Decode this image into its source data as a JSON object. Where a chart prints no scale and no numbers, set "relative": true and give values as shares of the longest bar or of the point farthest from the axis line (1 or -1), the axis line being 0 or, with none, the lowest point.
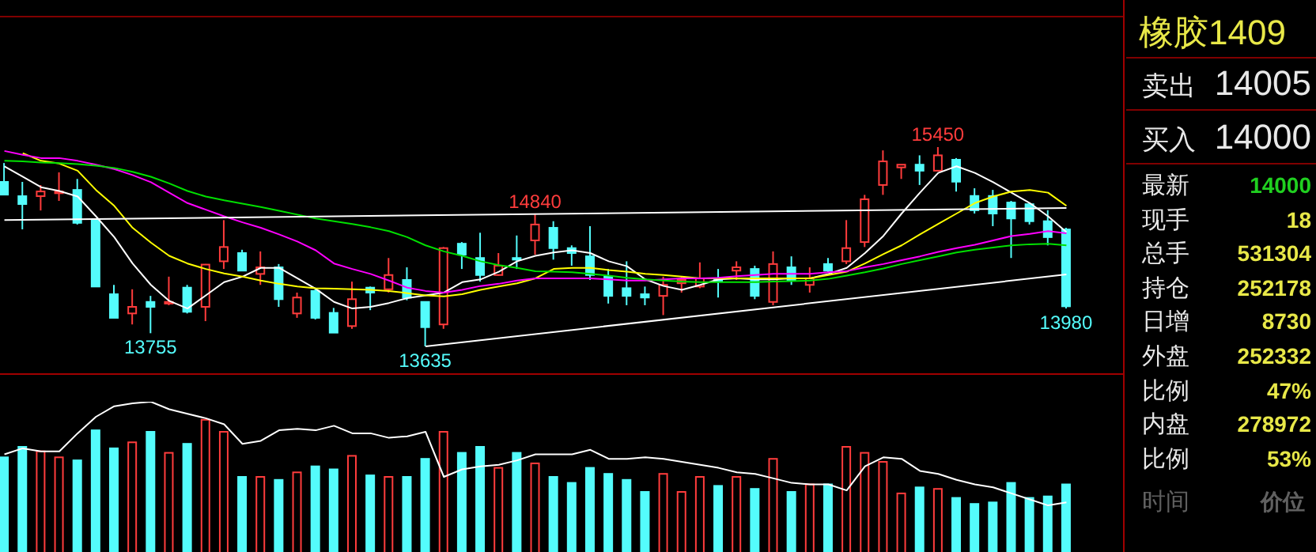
{
  "chart_data": [
    {
      "type": "candlestick",
      "tick_labels": false,
      "categories": [
        null,
        null,
        null,
        null,
        null,
        null,
        null,
        null,
        null,
        null,
        null,
        null,
        null,
        null,
        null,
        null,
        null,
        null,
        null,
        null,
        null,
        null,
        null,
        null,
        null,
        null,
        null,
        null,
        null,
        null,
        null,
        null,
        null,
        null,
        null,
        null,
        null,
        null,
        null,
        null,
        null,
        null,
        null,
        null,
        null,
        null,
        null,
        null,
        null,
        null,
        null,
        null,
        null,
        null,
        null,
        null,
        null,
        null,
        null
      ],
      "ohlc": [
        [
          15133,
          15305,
          15017,
          15017
        ],
        [
          15003,
          15133,
          14701,
          14931
        ],
        [
          15003,
          15104,
          14873,
          15046
        ],
        [
          15030,
          15220,
          14960,
          15045
        ],
        [
          15060,
          15160,
          14745,
          14760
        ],
        [
          14785,
          14800,
          14180,
          14180
        ],
        [
          14110,
          14195,
          13895,
          13895
        ],
        [
          13935,
          14155,
          13835,
          13995
        ],
        [
          14040,
          14095,
          13755,
          13995
        ],
        [
          14025,
          14270,
          14010,
          14040
        ],
        [
          14170,
          14195,
          13935,
          13950
        ],
        [
          13995,
          14385,
          13865,
          14380
        ],
        [
          14410,
          14785,
          14340,
          14540
        ],
        [
          14485,
          14515,
          14325,
          14325
        ],
        [
          14295,
          14500,
          14195,
          14355
        ],
        [
          14355,
          14385,
          13995,
          14065
        ],
        [
          13935,
          14125,
          13895,
          14080
        ],
        [
          14140,
          14155,
          13880,
          13895
        ],
        [
          13940,
          13985,
          13760,
          13760
        ],
        [
          13820,
          14225,
          13795,
          14065
        ],
        [
          14170,
          14180,
          13965,
          14125
        ],
        [
          14155,
          14440,
          14125,
          14285
        ],
        [
          14240,
          14355,
          14055,
          14080
        ],
        [
          14040,
          14045,
          13635,
          13810
        ],
        [
          13835,
          14540,
          13795,
          14530
        ],
        [
          14570,
          14585,
          14340,
          14470
        ],
        [
          14440,
          14670,
          14225,
          14285
        ],
        [
          14285,
          14485,
          14280,
          14370
        ],
        [
          14440,
          14645,
          14340,
          14425
        ],
        [
          14600,
          14840,
          14470,
          14745
        ],
        [
          14715,
          14775,
          14425,
          14530
        ],
        [
          14530,
          14555,
          14370,
          14485
        ],
        [
          14455,
          14730,
          14240,
          14285
        ],
        [
          14270,
          14340,
          14025,
          14095
        ],
        [
          14165,
          14410,
          14010,
          14095
        ],
        [
          14110,
          14180,
          14010,
          14080
        ],
        [
          14095,
          14270,
          13920,
          14195
        ],
        [
          14210,
          14270,
          14125,
          14240
        ],
        [
          14180,
          14400,
          14165,
          14255
        ],
        [
          14240,
          14340,
          14080,
          14225
        ],
        [
          14325,
          14410,
          14240,
          14355
        ],
        [
          14340,
          14370,
          14065,
          14095
        ],
        [
          14040,
          14500,
          14010,
          14385
        ],
        [
          14355,
          14455,
          14195,
          14240
        ],
        [
          14195,
          14355,
          14125,
          14255
        ],
        [
          14385,
          14440,
          14310,
          14325
        ],
        [
          14410,
          14785,
          14385,
          14530
        ],
        [
          14585,
          15015,
          14540,
          14975
        ],
        [
          15105,
          15420,
          15015,
          15320
        ],
        [
          15265,
          15290,
          15160,
          15290
        ],
        [
          15290,
          15375,
          15105,
          15235
        ],
        [
          15235,
          15450,
          15230,
          15375
        ],
        [
          15335,
          15350,
          15045,
          15135
        ],
        [
          15005,
          15075,
          14845,
          14875
        ],
        [
          15005,
          15060,
          14730,
          14845
        ],
        [
          14945,
          14960,
          14440,
          14800
        ],
        [
          14930,
          14945,
          14745,
          14775
        ],
        [
          14775,
          14875,
          14555,
          14630
        ],
        [
          14700,
          14715,
          13980,
          14000
        ]
      ],
      "colors": [
        "#54fcfc",
        "#54fcfc",
        "#ff3c3c",
        "#ff3c3c",
        "#54fcfc",
        "#54fcfc",
        "#54fcfc",
        "#ff3c3c",
        "#54fcfc",
        "#ff3c3c",
        "#54fcfc",
        "#ff3c3c",
        "#ff3c3c",
        "#54fcfc",
        "#ff3c3c",
        "#54fcfc",
        "#ff3c3c",
        "#54fcfc",
        "#54fcfc",
        "#ff3c3c",
        "#54fcfc",
        "#ff3c3c",
        "#54fcfc",
        "#54fcfc",
        "#ff3c3c",
        "#54fcfc",
        "#54fcfc",
        "#ff3c3c",
        "#54fcfc",
        "#ff3c3c",
        "#54fcfc",
        "#54fcfc",
        "#54fcfc",
        "#54fcfc",
        "#54fcfc",
        "#54fcfc",
        "#ff3c3c",
        "#ff3c3c",
        "#ff3c3c",
        "#54fcfc",
        "#ff3c3c",
        "#54fcfc",
        "#ff3c3c",
        "#54fcfc",
        "#ff3c3c",
        "#54fcfc",
        "#ff3c3c",
        "#ff3c3c",
        "#ff3c3c",
        "#ff3c3c",
        "#54fcfc",
        "#ff3c3c",
        "#54fcfc",
        "#54fcfc",
        "#54fcfc",
        "#54fcfc",
        "#54fcfc",
        "#54fcfc",
        "#54fcfc"
      ],
      "series": [
        {
          "type": "line",
          "color": "#ffffff",
          "values": [
            15275,
            15180,
            15085,
            15050,
            15000,
            14820,
            14630,
            14390,
            14195,
            14050,
            13980,
            14100,
            14220,
            14270,
            14350,
            14350,
            14255,
            14160,
            14040,
            13980,
            13995,
            14030,
            14075,
            14100,
            14125,
            14220,
            14245,
            14315,
            14410,
            14460,
            14490,
            14510,
            14485,
            14410,
            14365,
            14245,
            14185,
            14150,
            14195,
            14245,
            14255,
            14245,
            14245,
            14255,
            14255,
            14295,
            14350,
            14485,
            14640,
            14845,
            15035,
            15215,
            15275,
            15215,
            15130,
            15035,
            14940,
            14820,
            14675
          ]
        },
        {
          "type": "line",
          "color": "#ffff00",
          "values": [
            null,
            15395,
            15325,
            15300,
            15235,
            15060,
            14915,
            14715,
            14580,
            14460,
            14390,
            14340,
            14300,
            14270,
            14235,
            14205,
            14180,
            14165,
            14160,
            14155,
            14150,
            14140,
            14120,
            14100,
            14090,
            14110,
            14150,
            14180,
            14210,
            14255,
            14340,
            14350,
            14350,
            14330,
            14315,
            14295,
            14285,
            14270,
            14255,
            14255,
            14255,
            14255,
            14255,
            14255,
            14255,
            14285,
            14315,
            14390,
            14475,
            14555,
            14655,
            14750,
            14845,
            14940,
            15000,
            15045,
            15060,
            15035,
            14915
          ]
        },
        {
          "type": "line",
          "color": "#ff00ff",
          "values": [
            15415,
            15380,
            15350,
            15350,
            15325,
            15290,
            15250,
            15195,
            15130,
            15035,
            14940,
            14880,
            14820,
            14765,
            14715,
            14655,
            14590,
            14510,
            14390,
            14340,
            14295,
            14235,
            14170,
            14140,
            14125,
            14150,
            14185,
            14205,
            14235,
            14255,
            14255,
            14255,
            14255,
            14245,
            14235,
            14235,
            14245,
            14255,
            14255,
            14260,
            14275,
            14285,
            14295,
            14295,
            14295,
            14310,
            14320,
            14355,
            14385,
            14420,
            14455,
            14495,
            14530,
            14560,
            14600,
            14640,
            14660,
            14685,
            14665
          ]
        },
        {
          "type": "line",
          "color": "#00e000",
          "values": [
            15325,
            15320,
            15310,
            15305,
            15295,
            15280,
            15260,
            15225,
            15180,
            15120,
            15050,
            15000,
            14965,
            14935,
            14905,
            14870,
            14835,
            14800,
            14775,
            14750,
            14720,
            14685,
            14630,
            14555,
            14500,
            14460,
            14410,
            14375,
            14350,
            14320,
            14315,
            14310,
            14295,
            14280,
            14260,
            14245,
            14235,
            14225,
            14220,
            14220,
            14220,
            14220,
            14225,
            14230,
            14235,
            14250,
            14280,
            14310,
            14345,
            14385,
            14420,
            14455,
            14490,
            14515,
            14535,
            14555,
            14565,
            14570,
            14555
          ]
        },
        {
          "type": "line",
          "color": "#ffffff",
          "values": [
            14785,
            null,
            null,
            null,
            null,
            null,
            null,
            null,
            null,
            null,
            null,
            null,
            null,
            null,
            null,
            null,
            null,
            null,
            null,
            null,
            null,
            null,
            null,
            null,
            null,
            null,
            null,
            null,
            null,
            null,
            null,
            null,
            null,
            null,
            null,
            null,
            null,
            null,
            null,
            null,
            null,
            null,
            null,
            null,
            null,
            null,
            null,
            null,
            null,
            null,
            null,
            null,
            null,
            null,
            null,
            null,
            null,
            null,
            14895
          ]
        },
        {
          "type": "line",
          "color": "#ffffff",
          "values": [
            null,
            null,
            null,
            null,
            null,
            null,
            null,
            null,
            null,
            null,
            null,
            null,
            null,
            null,
            null,
            null,
            null,
            null,
            null,
            null,
            null,
            null,
            null,
            13635,
            null,
            null,
            null,
            null,
            null,
            null,
            null,
            null,
            null,
            null,
            null,
            null,
            null,
            null,
            null,
            null,
            null,
            null,
            null,
            null,
            null,
            null,
            null,
            null,
            null,
            null,
            null,
            null,
            null,
            null,
            null,
            null,
            null,
            null,
            14290
          ]
        }
      ],
      "annotations": [
        {
          "text": "15450",
          "y": 15450
        },
        {
          "text": "14840",
          "y": 14840
        },
        {
          "text": "13755",
          "y": 13755
        },
        {
          "text": "13635",
          "y": 13635
        },
        {
          "text": "13980",
          "y": 13980
        }
      ]
    },
    {
      "type": "bar",
      "relative": true,
      "tick_labels": false,
      "categories": [
        null,
        null,
        null,
        null,
        null,
        null,
        null,
        null,
        null,
        null,
        null,
        null,
        null,
        null,
        null,
        null,
        null,
        null,
        null,
        null,
        null,
        null,
        null,
        null,
        null,
        null,
        null,
        null,
        null,
        null,
        null,
        null,
        null,
        null,
        null,
        null,
        null,
        null,
        null,
        null,
        null,
        null,
        null,
        null,
        null,
        null,
        null,
        null,
        null,
        null,
        null,
        null,
        null,
        null,
        null,
        null,
        null,
        null,
        null
      ],
      "series": [
        {
          "type": "bar",
          "colors": [
            "#54fcfc",
            "#54fcfc",
            "#ff3c3c",
            "#ff3c3c",
            "#54fcfc",
            "#54fcfc",
            "#54fcfc",
            "#ff3c3c",
            "#54fcfc",
            "#ff3c3c",
            "#54fcfc",
            "#ff3c3c",
            "#ff3c3c",
            "#54fcfc",
            "#ff3c3c",
            "#54fcfc",
            "#ff3c3c",
            "#54fcfc",
            "#54fcfc",
            "#ff3c3c",
            "#54fcfc",
            "#ff3c3c",
            "#54fcfc",
            "#54fcfc",
            "#ff3c3c",
            "#54fcfc",
            "#54fcfc",
            "#ff3c3c",
            "#54fcfc",
            "#ff3c3c",
            "#54fcfc",
            "#54fcfc",
            "#54fcfc",
            "#54fcfc",
            "#54fcfc",
            "#54fcfc",
            "#ff3c3c",
            "#ff3c3c",
            "#ff3c3c",
            "#54fcfc",
            "#ff3c3c",
            "#54fcfc",
            "#ff3c3c",
            "#54fcfc",
            "#ff3c3c",
            "#54fcfc",
            "#ff3c3c",
            "#ff3c3c",
            "#ff3c3c",
            "#ff3c3c",
            "#54fcfc",
            "#ff3c3c",
            "#54fcfc",
            "#54fcfc",
            "#54fcfc",
            "#54fcfc",
            "#54fcfc",
            "#54fcfc",
            "#54fcfc"
          ],
          "values": [
            0.63,
            0.7,
            0.67,
            0.63,
            0.61,
            0.81,
            0.69,
            0.73,
            0.8,
            0.66,
            0.72,
            0.88,
            0.8,
            0.5,
            0.5,
            0.48,
            0.53,
            0.57,
            0.55,
            0.64,
            0.51,
            0.5,
            0.5,
            0.62,
            0.8,
            0.66,
            0.7,
            0.56,
            0.66,
            0.59,
            0.5,
            0.46,
            0.56,
            0.52,
            0.48,
            0.4,
            0.52,
            0.4,
            0.5,
            0.44,
            0.5,
            0.42,
            0.62,
            0.4,
            0.45,
            0.45,
            0.7,
            0.66,
            0.6,
            0.39,
            0.43,
            0.42,
            0.36,
            0.32,
            0.33,
            0.46,
            0.36,
            0.37,
            0.45
          ]
        },
        {
          "type": "line",
          "color": "#ffffff",
          "values": [
            0.65,
            0.69,
            0.67,
            0.67,
            0.79,
            0.9,
            0.97,
            0.99,
            1,
            0.95,
            0.92,
            0.89,
            0.85,
            0.72,
            0.74,
            0.81,
            0.82,
            0.81,
            0.84,
            0.79,
            0.79,
            0.76,
            0.77,
            0.8,
            0.5,
            0.55,
            0.57,
            0.58,
            0.61,
            0.65,
            0.65,
            0.65,
            0.68,
            0.62,
            0.62,
            0.63,
            0.62,
            0.6,
            0.58,
            0.56,
            0.53,
            0.52,
            0.49,
            0.46,
            0.45,
            0.45,
            0.41,
            0.57,
            0.63,
            0.62,
            0.54,
            0.52,
            0.48,
            0.45,
            0.43,
            0.39,
            0.35,
            0.31,
            0.33
          ]
        }
      ]
    },
    {
      "type": "other",
      "title": "橡胶1409",
      "annotations": [
        "卖出",
        "14005",
        "买入",
        "14000",
        "最新",
        "14000",
        "现手",
        "18",
        "总手",
        "531304",
        "持仓",
        "252178",
        "日增",
        "8730",
        "外盘",
        "252332",
        "比例",
        "47%",
        "内盘",
        "278972",
        "比例",
        "53%",
        "时间",
        "价位"
      ]
    }
  ]
}
